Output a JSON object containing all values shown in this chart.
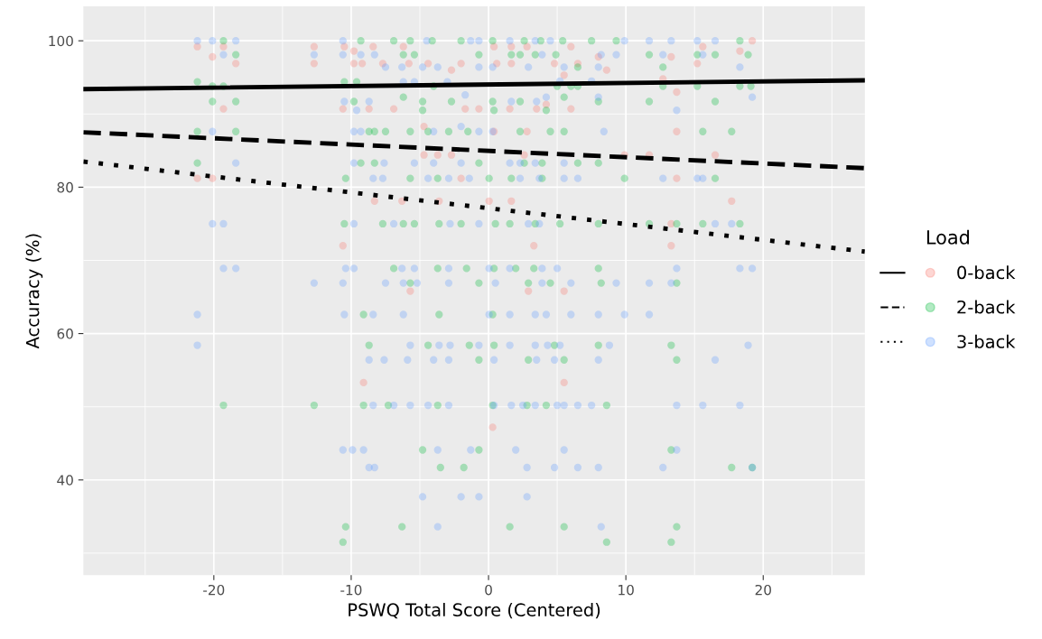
{
  "chart_data": {
    "type": "scatter",
    "xlabel": "PSWQ Total Score (Centered)",
    "ylabel": "Accuracy (%)",
    "legend_title": "Load",
    "xlim": [
      -29.5,
      27.4
    ],
    "ylim": [
      27.0,
      104.7
    ],
    "xticks": [
      -20,
      -10,
      0,
      10,
      20
    ],
    "yticks": [
      40,
      60,
      80,
      100
    ],
    "grid": true,
    "legend": "right",
    "series": [
      {
        "marker": "circle",
        "name": "0-back",
        "color": "#f8766d",
        "x": [
          -21.2,
          -20.1,
          -19.3,
          -18.4,
          -19.3,
          -21.2,
          -20.1,
          -12.7,
          -12.7,
          -10.6,
          -10.6,
          -10.5,
          -9.8,
          -9.8,
          -9.2,
          -8.7,
          -8.4,
          -8.3,
          -7.7,
          -6.9,
          -6.3,
          -6.2,
          -5.8,
          -5.7,
          -4.7,
          -4.7,
          -4.4,
          -3.7,
          -3.6,
          -2.7,
          -2.7,
          -2.0,
          -2.0,
          -1.7,
          0.4,
          0.6,
          -0.7,
          0.4,
          0.04,
          1.66,
          1.66,
          1.55,
          2.6,
          2.8,
          2.8,
          1.66,
          3.3,
          2.9,
          3.5,
          4.2,
          4.8,
          5.5,
          5.5,
          6.0,
          6.5,
          6.0,
          8.0,
          8.6,
          9.9,
          11.7,
          12.7,
          13.3,
          13.7,
          13.7,
          13.7,
          13.3,
          13.3,
          15.6,
          15.2,
          16.5,
          17.7,
          18.3,
          19.2,
          -9.1,
          5.5,
          0.3
        ],
        "values": [
          99.2,
          97.8,
          99.2,
          96.9,
          90.7,
          81.2,
          81.2,
          99.2,
          96.9,
          90.7,
          72.0,
          99.2,
          98.6,
          96.9,
          96.9,
          90.7,
          99.2,
          78.1,
          96.9,
          90.7,
          78.1,
          99.2,
          96.9,
          65.8,
          88.3,
          84.4,
          96.9,
          84.4,
          78.1,
          84.4,
          96.0,
          81.2,
          96.9,
          90.7,
          99.2,
          96.9,
          90.7,
          87.6,
          78.1,
          99.2,
          96.9,
          90.7,
          84.4,
          87.6,
          99.2,
          78.1,
          72.0,
          65.8,
          90.7,
          91.3,
          96.9,
          95.3,
          65.8,
          99.2,
          96.9,
          90.7,
          97.8,
          96.0,
          84.4,
          84.4,
          94.8,
          97.8,
          93.0,
          87.6,
          81.2,
          75.0,
          72.0,
          99.2,
          96.9,
          84.4,
          78.1,
          98.6,
          100,
          53.3,
          53.3,
          47.2
        ]
      },
      {
        "marker": "circle",
        "name": "2-back",
        "color": "#00ba38",
        "x": [
          -19.3,
          -18.4,
          -21.2,
          -20.1,
          -19.3,
          -20.1,
          -18.4,
          -21.2,
          -18.4,
          -21.2,
          -10.5,
          -9.6,
          -9.8,
          -8.7,
          -8.3,
          -7.5,
          -9.3,
          -8.3,
          -10.4,
          -10.5,
          -7.7,
          -6.2,
          -5.4,
          -6.9,
          -5.7,
          -9.3,
          -6.9,
          -5.7,
          -4.1,
          -2.0,
          -6.2,
          -5.4,
          -6.2,
          -4.8,
          -4.8,
          -2.7,
          -5.7,
          -4.4,
          -2.9,
          -1.5,
          -5.7,
          -3.7,
          -3.6,
          -2.0,
          -3.7,
          -1.6,
          -4.0,
          0.3,
          2.6,
          3.8,
          5.4,
          7.5,
          9.3,
          18.3,
          -0.7,
          1.66,
          2.3,
          3.4,
          4.9,
          11.7,
          15.2,
          16.5,
          18.9,
          6.5,
          12.7,
          5.0,
          6.0,
          6.5,
          12.7,
          15.2,
          18.3,
          19.1,
          0.3,
          2.3,
          5.5,
          8.0,
          11.7,
          16.5,
          0.4,
          4.2,
          2.3,
          4.5,
          5.5,
          15.6,
          17.7,
          -0.7,
          2.6,
          3.9,
          6.5,
          8.0,
          0.04,
          1.66,
          3.9,
          9.9,
          16.5,
          0.5,
          1.55,
          3.4,
          5.2,
          8.0,
          11.7,
          13.7,
          15.6,
          18.3,
          0.4,
          1.98,
          3.3,
          8.0,
          -0.7,
          2.9,
          4.5,
          8.2,
          13.7,
          -9.1,
          -3.6,
          -8.7,
          -4.4,
          -1.4,
          -19.3,
          -12.7,
          -9.1,
          -7.3,
          -3.7,
          -4.8,
          -3.5,
          -1.8,
          -10.4,
          -6.3,
          -10.6,
          0.3,
          0.4,
          4.8,
          8.0,
          13.3,
          -0.7,
          2.9,
          5.5,
          13.7,
          0.3,
          2.8,
          4.2,
          8.6,
          -0.7,
          13.3,
          17.7,
          19.2,
          1.55,
          5.5,
          13.7,
          8.6,
          13.3
        ],
        "values": [
          100,
          98.1,
          94.4,
          93.8,
          93.8,
          91.7,
          91.7,
          87.6,
          87.6,
          83.3,
          94.4,
          94.4,
          91.7,
          87.6,
          87.6,
          87.6,
          83.3,
          83.3,
          81.2,
          75.0,
          75.0,
          75.0,
          75.0,
          68.9,
          66.9,
          100,
          100,
          100,
          100,
          100,
          98.1,
          98.1,
          92.3,
          91.7,
          90.5,
          91.7,
          87.6,
          87.6,
          87.6,
          87.6,
          81.2,
          81.2,
          75.0,
          75.0,
          68.9,
          68.9,
          93.8,
          100,
          100,
          100,
          100,
          100,
          100,
          100,
          98.1,
          98.1,
          98.1,
          98.1,
          98.1,
          98.1,
          98.1,
          98.1,
          98.1,
          96.4,
          96.4,
          93.8,
          93.8,
          93.8,
          93.8,
          93.8,
          93.8,
          93.8,
          91.7,
          91.7,
          92.3,
          91.7,
          91.7,
          91.7,
          90.5,
          90.5,
          87.6,
          87.6,
          87.6,
          87.6,
          87.6,
          83.3,
          83.3,
          83.3,
          83.3,
          83.3,
          81.2,
          81.2,
          81.2,
          81.2,
          81.2,
          75.0,
          75.0,
          75.0,
          75.0,
          75.0,
          75.0,
          75.0,
          75.0,
          75.0,
          68.9,
          68.9,
          68.9,
          68.9,
          66.9,
          66.9,
          66.9,
          66.9,
          66.9,
          62.6,
          62.6,
          58.4,
          58.4,
          58.4,
          50.2,
          50.2,
          50.2,
          50.2,
          50.2,
          44.1,
          41.7,
          41.7,
          33.6,
          33.6,
          31.5,
          62.6,
          58.4,
          58.4,
          58.4,
          58.4,
          56.4,
          56.4,
          56.4,
          56.4,
          50.2,
          50.2,
          50.2,
          50.2,
          44.1,
          44.1,
          41.7,
          41.7,
          33.6,
          33.6,
          33.6,
          31.5,
          31.5
        ]
      },
      {
        "marker": "circle",
        "name": "3-back",
        "color": "#619cff",
        "x": [
          -21.2,
          -20.1,
          -18.4,
          -19.3,
          -20.1,
          -18.4,
          -20.1,
          -19.3,
          -19.3,
          -18.4,
          -12.7,
          -10.6,
          -10.4,
          -9.8,
          -10.6,
          -12.7,
          -10.6,
          -9.3,
          -8.3,
          -7.5,
          -6.3,
          -4.8,
          -3.7,
          -10.5,
          -9.6,
          -8.7,
          -9.8,
          -9.3,
          -4.0,
          -2.0,
          -9.8,
          -7.6,
          -5.4,
          -4.0,
          -2.0,
          -8.4,
          -7.7,
          -4.4,
          -2.9,
          -1.4,
          -9.8,
          -6.9,
          -2.8,
          -6.3,
          -5.4,
          -2.9,
          -7.5,
          -6.2,
          -5.2,
          -2.9,
          -1.7,
          -4.5,
          -1.3,
          -6.2,
          -5.4,
          -3.0,
          -0.7,
          1.55,
          3.4,
          4.5,
          9.9,
          11.7,
          13.3,
          15.2,
          16.5,
          -0.7,
          0.3,
          2.9,
          5.5,
          8.0,
          18.3,
          3.9,
          9.3,
          12.7,
          15.6,
          8.2,
          5.2,
          7.5,
          4.2,
          8.0,
          1.66,
          3.5,
          19.2,
          13.7,
          -0.7,
          0.3,
          8.4,
          1.55,
          2.3,
          3.4,
          5.5,
          2.3,
          3.7,
          5.5,
          6.5,
          12.7,
          15.2,
          15.6,
          -0.7,
          2.9,
          3.7,
          16.5,
          17.7,
          13.7,
          18.3,
          19.2,
          1.55,
          3.9,
          5.0,
          0.04,
          11.7,
          13.3,
          9.3,
          3.9,
          6.0,
          0.5,
          -21.2,
          -21.2,
          -10.5,
          -8.4,
          -6.2,
          -5.7,
          -3.6,
          -2.8,
          -8.7,
          -7.6,
          -5.9,
          -4.0,
          -2.9,
          -8.4,
          -6.9,
          -5.7,
          -4.4,
          -2.9,
          -10.6,
          -9.9,
          -9.1,
          -3.7,
          -1.3,
          -8.7,
          -8.3,
          -4.8,
          -2.0,
          -3.7,
          0.04,
          1.55,
          3.4,
          4.2,
          6.0,
          8.0,
          9.9,
          11.7,
          -0.7,
          1.55,
          3.4,
          4.3,
          5.2,
          8.8,
          18.9,
          0.4,
          3.5,
          4.8,
          8.0,
          16.5,
          0.4,
          1.66,
          2.5,
          3.4,
          5.0,
          5.5,
          6.5,
          7.5,
          13.7,
          15.6,
          18.3,
          1.98,
          5.5,
          13.7,
          2.8,
          4.8,
          6.5,
          8.0,
          12.7,
          19.2,
          -0.7,
          2.8,
          8.2
        ],
        "values": [
          100,
          100,
          100,
          98.1,
          87.6,
          83.3,
          75.0,
          75.0,
          68.9,
          68.9,
          66.9,
          66.9,
          68.9,
          68.9,
          100,
          98.1,
          98.1,
          98.1,
          98.1,
          96.4,
          96.4,
          96.4,
          96.4,
          91.7,
          90.5,
          91.7,
          87.6,
          87.6,
          87.6,
          88.3,
          83.3,
          83.3,
          83.3,
          83.3,
          83.3,
          81.2,
          81.2,
          81.2,
          81.2,
          81.2,
          75.0,
          75.0,
          75.0,
          68.9,
          68.9,
          68.9,
          66.9,
          66.9,
          66.9,
          66.9,
          92.6,
          100,
          100,
          94.4,
          94.4,
          94.4,
          100,
          100,
          100,
          100,
          100,
          100,
          100,
          100,
          100,
          96.4,
          96.4,
          96.4,
          96.4,
          96.4,
          96.4,
          98.1,
          98.1,
          98.1,
          98.1,
          98.1,
          94.5,
          94.5,
          92.3,
          92.3,
          91.7,
          91.7,
          92.3,
          90.5,
          87.6,
          87.6,
          87.6,
          83.3,
          83.3,
          83.3,
          83.3,
          81.2,
          81.2,
          81.2,
          81.2,
          81.2,
          81.2,
          81.2,
          75.0,
          75.0,
          75.0,
          75.0,
          75.0,
          68.9,
          68.9,
          68.9,
          68.9,
          68.9,
          68.9,
          68.9,
          66.9,
          66.9,
          66.9,
          66.9,
          66.9,
          66.9,
          62.6,
          58.4,
          62.6,
          62.6,
          62.6,
          58.4,
          58.4,
          58.4,
          56.4,
          56.4,
          56.4,
          56.4,
          56.4,
          50.2,
          50.2,
          50.2,
          50.2,
          50.2,
          44.1,
          44.1,
          44.1,
          44.1,
          44.1,
          41.7,
          41.7,
          37.7,
          37.7,
          33.6,
          62.6,
          62.6,
          62.6,
          62.6,
          62.6,
          62.6,
          62.6,
          62.6,
          58.4,
          58.4,
          58.4,
          58.4,
          58.4,
          58.4,
          58.4,
          56.4,
          56.4,
          56.4,
          56.4,
          56.4,
          50.2,
          50.2,
          50.2,
          50.2,
          50.2,
          50.2,
          50.2,
          50.2,
          50.2,
          50.2,
          50.2,
          44.1,
          44.1,
          44.1,
          41.7,
          41.7,
          41.7,
          41.7,
          41.7,
          41.7,
          37.7,
          37.7,
          33.6
        ]
      },
      {
        "type": "line",
        "marker": "none",
        "color": "#000000",
        "line_style": "solid",
        "x": [
          -29.5,
          27.4
        ],
        "values": [
          93.4,
          94.6
        ]
      },
      {
        "type": "line",
        "marker": "none",
        "color": "#000000",
        "line_style": "dashed",
        "x": [
          -29.5,
          27.4
        ],
        "values": [
          87.5,
          82.6
        ]
      },
      {
        "type": "line",
        "marker": "none",
        "color": "#000000",
        "line_style": "dotted",
        "x": [
          -29.5,
          27.4
        ],
        "values": [
          83.5,
          71.2
        ]
      }
    ]
  }
}
